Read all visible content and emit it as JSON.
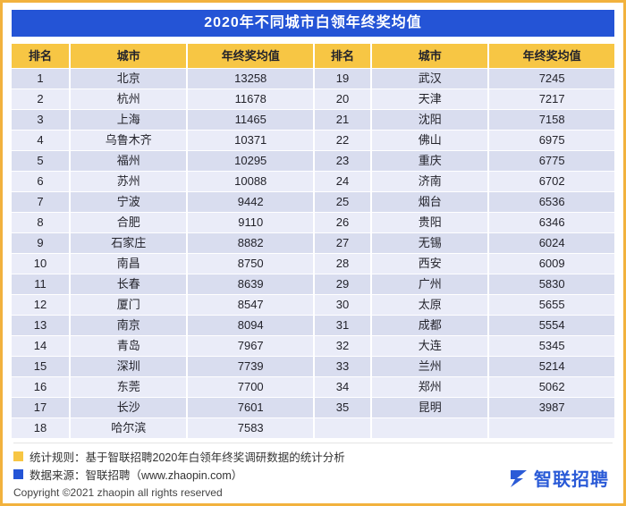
{
  "page": {
    "title": "2020年不同城市白领年终奖均值"
  },
  "chart_data": {
    "type": "table",
    "title": "2020年不同城市白领年终奖均值",
    "columns": [
      "排名",
      "城市",
      "年终奖均值"
    ],
    "rows": [
      [
        1,
        "北京",
        13258
      ],
      [
        2,
        "杭州",
        11678
      ],
      [
        3,
        "上海",
        11465
      ],
      [
        4,
        "乌鲁木齐",
        10371
      ],
      [
        5,
        "福州",
        10295
      ],
      [
        6,
        "苏州",
        10088
      ],
      [
        7,
        "宁波",
        9442
      ],
      [
        8,
        "合肥",
        9110
      ],
      [
        9,
        "石家庄",
        8882
      ],
      [
        10,
        "南昌",
        8750
      ],
      [
        11,
        "长春",
        8639
      ],
      [
        12,
        "厦门",
        8547
      ],
      [
        13,
        "南京",
        8094
      ],
      [
        14,
        "青岛",
        7967
      ],
      [
        15,
        "深圳",
        7739
      ],
      [
        16,
        "东莞",
        7700
      ],
      [
        17,
        "长沙",
        7601
      ],
      [
        18,
        "哈尔滨",
        7583
      ],
      [
        19,
        "武汉",
        7245
      ],
      [
        20,
        "天津",
        7217
      ],
      [
        21,
        "沈阳",
        7158
      ],
      [
        22,
        "佛山",
        6975
      ],
      [
        23,
        "重庆",
        6775
      ],
      [
        24,
        "济南",
        6702
      ],
      [
        25,
        "烟台",
        6536
      ],
      [
        26,
        "贵阳",
        6346
      ],
      [
        27,
        "无锡",
        6024
      ],
      [
        28,
        "西安",
        6009
      ],
      [
        29,
        "广州",
        5830
      ],
      [
        30,
        "太原",
        5655
      ],
      [
        31,
        "成都",
        5554
      ],
      [
        32,
        "大连",
        5345
      ],
      [
        33,
        "兰州",
        5214
      ],
      [
        34,
        "郑州",
        5062
      ],
      [
        35,
        "昆明",
        3987
      ]
    ],
    "layout": {
      "split_into_two_column_blocks": true,
      "rows_per_block": 18
    }
  },
  "footer": {
    "note_rule": "统计规则：基于智联招聘2020年白领年终奖调研数据的统计分析",
    "note_source": "数据来源：智联招聘（www.zhaopin.com）",
    "copyright": "Copyright ©2021 zhaopin all rights reserved",
    "logo_text": "智联招聘"
  },
  "colors": {
    "frame_border": "#F2B23D",
    "title_bg": "#2454D6",
    "header_bg": "#F7C644",
    "row_dark": "#D9DDEF",
    "row_light": "#EAECF8",
    "logo_blue": "#2B5BD7"
  }
}
